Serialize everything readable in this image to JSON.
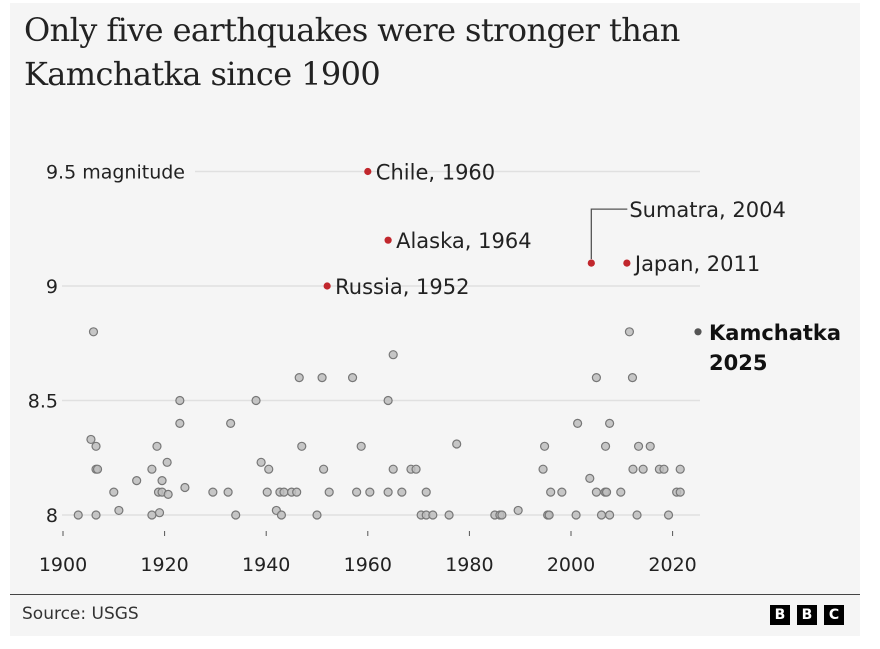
{
  "title": "Only five earthquakes were stronger than Kamchatka since 1900",
  "source": "Source: USGS",
  "logo": [
    "B",
    "B",
    "C"
  ],
  "colors": {
    "highlight": "#c1272d",
    "current": "#555555",
    "dot_fill": "#bdbdbd",
    "dot_stroke": "#777777",
    "grid": "#e0e0e0",
    "panel_bg": "#f5f5f5"
  },
  "chart_data": {
    "type": "scatter",
    "title": "Only five earthquakes were stronger than Kamchatka since 1900",
    "xlabel": "",
    "ylabel": "magnitude",
    "xlim": [
      1900,
      2025
    ],
    "ylim": [
      8,
      9.5
    ],
    "x_ticks": [
      1900,
      1920,
      1940,
      1960,
      1980,
      2000,
      2020
    ],
    "y_ticks": [
      {
        "value": 8,
        "label": "8"
      },
      {
        "value": 8.5,
        "label": "8.5"
      },
      {
        "value": 9,
        "label": "9"
      },
      {
        "value": 9.5,
        "label": "9.5 magnitude"
      }
    ],
    "grid": "horizontal",
    "highlighted": [
      {
        "label": "Chile, 1960",
        "year": 1960,
        "magnitude": 9.5
      },
      {
        "label": "Alaska, 1964",
        "year": 1964,
        "magnitude": 9.2
      },
      {
        "label": "Russia, 1952",
        "year": 1952,
        "magnitude": 9.0
      },
      {
        "label": "Sumatra, 2004",
        "year": 2004,
        "magnitude": 9.1
      },
      {
        "label": "Japan, 2011",
        "year": 2011,
        "magnitude": 9.1
      }
    ],
    "current": {
      "label_line1": "Kamchatka",
      "label_line2": "2025",
      "year": 2025,
      "magnitude": 8.8
    },
    "other_quakes": [
      [
        1906,
        8.8
      ],
      [
        1923,
        8.5
      ],
      [
        1923,
        8.4
      ],
      [
        1905.5,
        8.33
      ],
      [
        1906.5,
        8.3
      ],
      [
        1918.5,
        8.3
      ],
      [
        1906.5,
        8.2
      ],
      [
        1906.8,
        8.2
      ],
      [
        1920.5,
        8.23
      ],
      [
        1917.5,
        8.2
      ],
      [
        1914.5,
        8.15
      ],
      [
        1919.5,
        8.15
      ],
      [
        1910,
        8.1
      ],
      [
        1918.8,
        8.1
      ],
      [
        1919.5,
        8.1
      ],
      [
        1920.7,
        8.09
      ],
      [
        1924,
        8.12
      ],
      [
        1903,
        8.0
      ],
      [
        1906.5,
        8.0
      ],
      [
        1911,
        8.02
      ],
      [
        1917.5,
        8.0
      ],
      [
        1919,
        8.01
      ],
      [
        1946.5,
        8.6
      ],
      [
        1951,
        8.6
      ],
      [
        1938,
        8.5
      ],
      [
        1933,
        8.4
      ],
      [
        1947,
        8.3
      ],
      [
        1939,
        8.23
      ],
      [
        1940.5,
        8.2
      ],
      [
        1951.3,
        8.2
      ],
      [
        1929.5,
        8.1
      ],
      [
        1932.5,
        8.1
      ],
      [
        1940.2,
        8.1
      ],
      [
        1942.7,
        8.1
      ],
      [
        1943.5,
        8.1
      ],
      [
        1945,
        8.1
      ],
      [
        1946,
        8.1
      ],
      [
        1952.4,
        8.1
      ],
      [
        1934,
        8.0
      ],
      [
        1942,
        8.02
      ],
      [
        1943,
        8.0
      ],
      [
        1950,
        8.0
      ],
      [
        1965,
        8.7
      ],
      [
        1957,
        8.6
      ],
      [
        1964,
        8.5
      ],
      [
        1958.7,
        8.3
      ],
      [
        1977.5,
        8.31
      ],
      [
        1965,
        8.2
      ],
      [
        1968.5,
        8.2
      ],
      [
        1969.5,
        8.2
      ],
      [
        1957.8,
        8.1
      ],
      [
        1960.4,
        8.1
      ],
      [
        1964,
        8.1
      ],
      [
        1966.7,
        8.1
      ],
      [
        1971.5,
        8.1
      ],
      [
        1970.5,
        8.0
      ],
      [
        1971.5,
        8.0
      ],
      [
        1972.8,
        8.0
      ],
      [
        1976,
        8.0
      ],
      [
        1985,
        8.0
      ],
      [
        1986,
        8.0
      ],
      [
        1986.4,
        8.0
      ],
      [
        1989.6,
        8.02
      ],
      [
        2005,
        8.6
      ],
      [
        2001.3,
        8.4
      ],
      [
        1994.8,
        8.3
      ],
      [
        1994.5,
        8.2
      ],
      [
        2003.7,
        8.16
      ],
      [
        1996,
        8.1
      ],
      [
        1998.2,
        8.1
      ],
      [
        2005,
        8.1
      ],
      [
        1995.4,
        8.0
      ],
      [
        1995.7,
        8.0
      ],
      [
        2001,
        8.0
      ],
      [
        2011.5,
        8.8
      ],
      [
        2012.1,
        8.6
      ],
      [
        2007.6,
        8.4
      ],
      [
        2006.8,
        8.3
      ],
      [
        2013.3,
        8.3
      ],
      [
        2015.6,
        8.3
      ],
      [
        2012.2,
        8.2
      ],
      [
        2014.2,
        8.2
      ],
      [
        2017.4,
        8.2
      ],
      [
        2018.3,
        8.2
      ],
      [
        2021.5,
        8.2
      ],
      [
        2006.7,
        8.1
      ],
      [
        2007,
        8.1
      ],
      [
        2009.8,
        8.1
      ],
      [
        2020.8,
        8.1
      ],
      [
        2021.5,
        8.1
      ],
      [
        2006,
        8.0
      ],
      [
        2007.6,
        8.0
      ],
      [
        2013,
        8.0
      ],
      [
        2019.2,
        8.0
      ]
    ]
  }
}
